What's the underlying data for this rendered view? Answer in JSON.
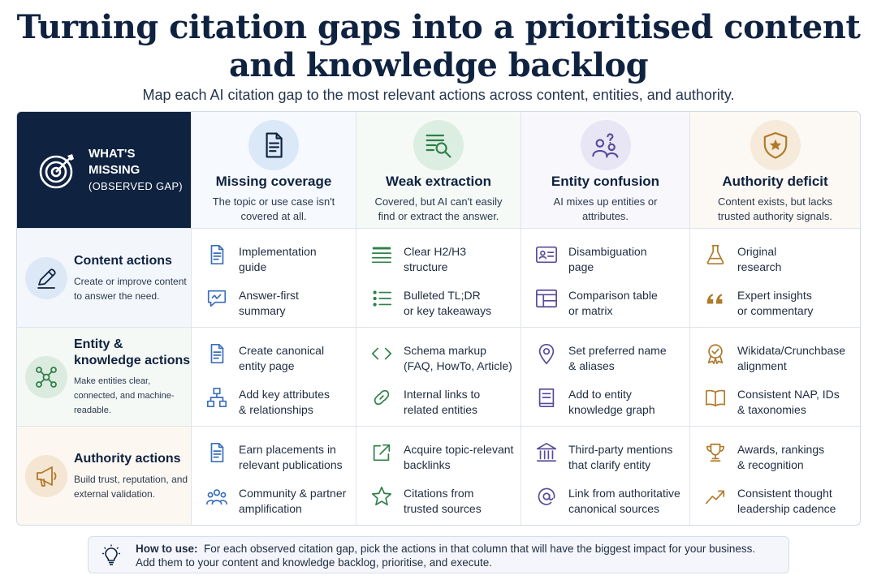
{
  "title_line1": "Turning citation gaps into a prioritised content",
  "title_line2": "and knowledge backlog",
  "subtitle": "Map each AI citation gap to the most relevant actions across content, entities, and authority.",
  "corner": {
    "label_line1": "WHAT'S",
    "label_line2": "MISSING",
    "label_line3": "(OBSERVED GAP)"
  },
  "columns": [
    {
      "title": "Missing coverage",
      "desc": "The topic or use case isn't covered at all.",
      "icon": "document-icon",
      "color": "#dbe8f7"
    },
    {
      "title": "Weak extraction",
      "desc": "Covered, but AI can't easily find or extract the answer.",
      "icon": "magnify-lines-icon",
      "color": "#dceee2"
    },
    {
      "title": "Entity confusion",
      "desc": "AI mixes up entities or attributes.",
      "icon": "people-question-icon",
      "color": "#e8e5f4"
    },
    {
      "title": "Authority deficit",
      "desc": "Content exists, but lacks trusted authority signals.",
      "icon": "shield-star-icon",
      "color": "#f6ebda"
    }
  ],
  "rows": [
    {
      "title": "Content actions",
      "desc": "Create or improve content to answer the need.",
      "icon": "pencil-icon",
      "color": "#dde8f6",
      "bg": "#f3f7fc"
    },
    {
      "title": "Entity & knowledge actions",
      "desc": "Make entities clear, connected, and machine-readable.",
      "icon": "network-icon",
      "color": "#dcebdf",
      "bg": "#f4f9f5"
    },
    {
      "title": "Authority actions",
      "desc": "Build trust, reputation, and external validation.",
      "icon": "megaphone-icon",
      "color": "#f5e5d3",
      "bg": "#fcf7f1"
    }
  ],
  "cells": [
    [
      [
        {
          "text": "Implementation\nguide",
          "icon": "document-icon"
        },
        {
          "text": "Answer-first\nsummary",
          "icon": "chat-bubble-icon"
        }
      ],
      [
        {
          "text": "Clear H2/H3\nstructure",
          "icon": "heading-lines-icon"
        },
        {
          "text": "Bulleted TL;DR\nor key takeaways",
          "icon": "bullet-list-icon"
        }
      ],
      [
        {
          "text": "Disambiguation\npage",
          "icon": "id-card-icon"
        },
        {
          "text": "Comparison table\nor matrix",
          "icon": "table-icon"
        }
      ],
      [
        {
          "text": "Original\nresearch",
          "icon": "flask-icon"
        },
        {
          "text": "Expert insights\nor commentary",
          "icon": "quote-icon"
        }
      ]
    ],
    [
      [
        {
          "text": "Create canonical\nentity page",
          "icon": "document-icon"
        },
        {
          "text": "Add key attributes\n& relationships",
          "icon": "hierarchy-icon"
        }
      ],
      [
        {
          "text": "Schema markup\n(FAQ, HowTo, Article)",
          "icon": "code-icon"
        },
        {
          "text": "Internal links to\nrelated entities",
          "icon": "link-icon"
        }
      ],
      [
        {
          "text": "Set preferred name\n& aliases",
          "icon": "location-pin-icon"
        },
        {
          "text": "Add to entity\nknowledge graph",
          "icon": "book-icon"
        }
      ],
      [
        {
          "text": "Wikidata/Crunchbase\nalignment",
          "icon": "badge-check-icon"
        },
        {
          "text": "Consistent NAP, IDs\n& taxonomies",
          "icon": "open-book-icon"
        }
      ]
    ],
    [
      [
        {
          "text": "Earn placements in\nrelevant publications",
          "icon": "document-icon"
        },
        {
          "text": "Community & partner\namplification",
          "icon": "community-icon"
        }
      ],
      [
        {
          "text": "Acquire topic-relevant\nbacklinks",
          "icon": "external-link-icon"
        },
        {
          "text": "Citations from\ntrusted sources",
          "icon": "star-icon"
        }
      ],
      [
        {
          "text": "Third-party mentions\nthat clarify entity",
          "icon": "institution-icon"
        },
        {
          "text": "Link from authoritative\ncanonical sources",
          "icon": "at-circle-icon"
        }
      ],
      [
        {
          "text": "Awards, rankings\n& recognition",
          "icon": "trophy-icon"
        },
        {
          "text": "Consistent thought\nleadership cadence",
          "icon": "trend-up-icon"
        }
      ]
    ]
  ],
  "howto": {
    "label": "How to use:",
    "text_line1": "For each observed citation gap, pick the actions in that column that will have the biggest impact for your business.",
    "text_line2": "Add them to your content and knowledge backlog, prioritise, and execute."
  },
  "colors": {
    "navy": "#0f2240",
    "blue": "#3a6fb8",
    "green": "#2f8048",
    "purple": "#5a4a9a",
    "gold": "#b07a2a"
  }
}
